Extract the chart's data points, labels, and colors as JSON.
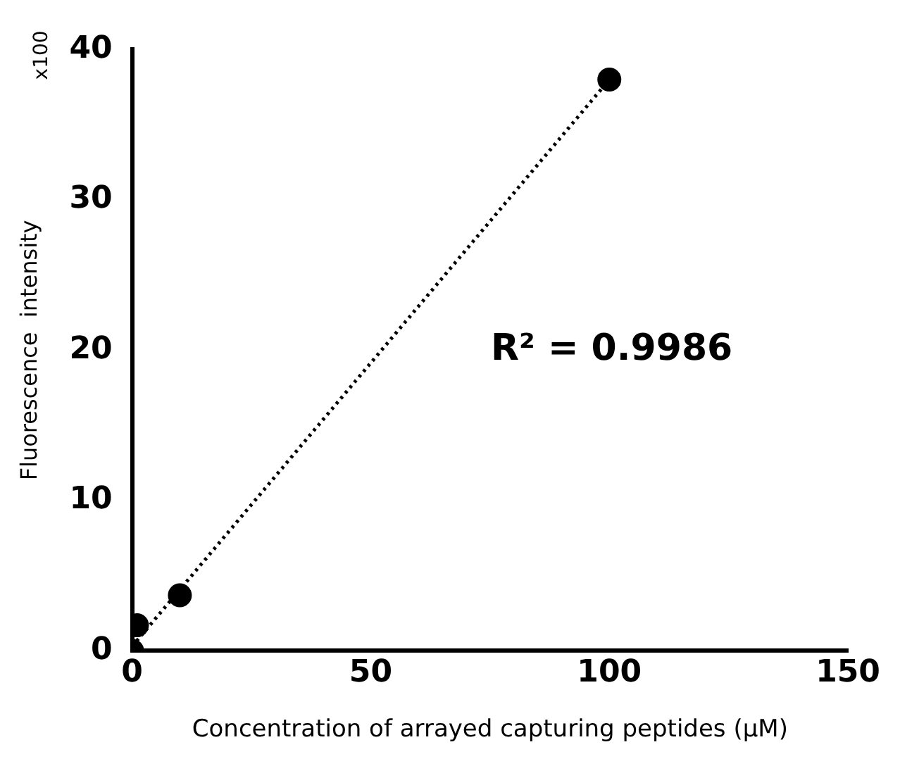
{
  "chart_data": {
    "type": "scatter",
    "xlabel": "Concentration of arrayed capturing peptides (μM)",
    "ylabel": "Fluorescence  intensity",
    "x": [
      0,
      1,
      10,
      100
    ],
    "series": [
      {
        "type": "scatter",
        "color": "#000000",
        "marker": "circle",
        "values": [
          0,
          1.7,
          3.7,
          38
        ]
      },
      {
        "type": "line",
        "color": "#000000",
        "marker": "none",
        "line_style": "dotted",
        "x": [
          0,
          100
        ],
        "values": [
          0.3,
          38
        ]
      }
    ],
    "xlim": [
      0,
      150
    ],
    "xticks": [
      0,
      50,
      100,
      150
    ],
    "ylim": [
      0,
      40
    ],
    "yticks": [
      0,
      10,
      20,
      30,
      40
    ],
    "grid": false,
    "legend": false,
    "annotations": [
      "x100",
      "R² = 0.9986"
    ]
  }
}
